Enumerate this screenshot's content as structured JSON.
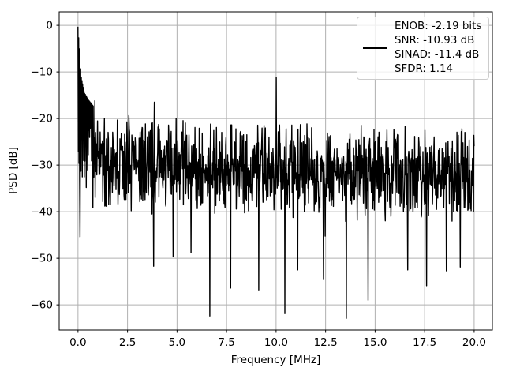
{
  "figure": {
    "background": "#ffffff"
  },
  "legend": {
    "lines": [
      "ENOB: -2.19 bits",
      "SNR: -10.93 dB",
      "SINAD: -11.4 dB",
      "SFDR: 1.14"
    ],
    "border_color": "#cccccc",
    "line_sample_color": "#000000"
  },
  "chart_data": {
    "type": "line",
    "title": "",
    "xlabel": "Frequency [MHz]",
    "ylabel": "PSD [dB]",
    "grid": true,
    "legend_position": "upper right",
    "line_color": "#000000",
    "grid_color": "#b0b0b0",
    "spine_color": "#000000",
    "xlim": [
      -0.95,
      20.92
    ],
    "ylim": [
      -65.4,
      2.9
    ],
    "x_ticks": {
      "values": [
        0,
        2.5,
        5,
        7.5,
        10,
        12.5,
        15,
        17.5,
        20
      ],
      "labels": [
        "0.0",
        "2.5",
        "5.0",
        "7.5",
        "10.0",
        "12.5",
        "15.0",
        "17.5",
        "20.0"
      ]
    },
    "y_ticks": {
      "values": [
        0,
        -10,
        -20,
        -30,
        -40,
        -50,
        -60
      ],
      "labels": [
        "0",
        "−10",
        "−20",
        "−30",
        "−40",
        "−50",
        "−60"
      ]
    },
    "x_range_mhz": [
      0,
      20
    ],
    "dc_peak": {
      "f": 0.0,
      "db": -0.3
    },
    "spur": {
      "f": 10.0,
      "db": -11.2
    },
    "dc_skirt_envelope": [
      [
        0.0,
        -0.3
      ],
      [
        0.08,
        -6.0
      ],
      [
        0.16,
        -11.0
      ],
      [
        0.32,
        -14.5
      ],
      [
        0.52,
        -16.0
      ],
      [
        0.8,
        -17.5
      ]
    ],
    "top_spikes": [
      [
        0.85,
        -16.2
      ],
      [
        3.85,
        -16.5
      ]
    ],
    "deep_nulls": [
      [
        0.1,
        -45.4
      ],
      [
        3.82,
        -51.7
      ],
      [
        4.8,
        -49.7
      ],
      [
        5.7,
        -48.8
      ],
      [
        6.65,
        -62.4
      ],
      [
        7.7,
        -56.4
      ],
      [
        9.12,
        -56.8
      ],
      [
        10.45,
        -61.9
      ],
      [
        11.1,
        -52.5
      ],
      [
        12.4,
        -54.4
      ],
      [
        13.55,
        -62.9
      ],
      [
        14.65,
        -59.0
      ],
      [
        16.65,
        -52.5
      ],
      [
        17.6,
        -55.9
      ],
      [
        18.6,
        -52.7
      ],
      [
        19.3,
        -51.9
      ]
    ],
    "noise": {
      "seed": 7,
      "n_points": 1200,
      "x_max": 20,
      "floor_mean_start_db": -29.5,
      "floor_slope_db_per_mhz": -0.12,
      "spread_halfwidth_db": 11,
      "dip_probability": 0.07,
      "dip_max_extra_db": 9
    }
  }
}
